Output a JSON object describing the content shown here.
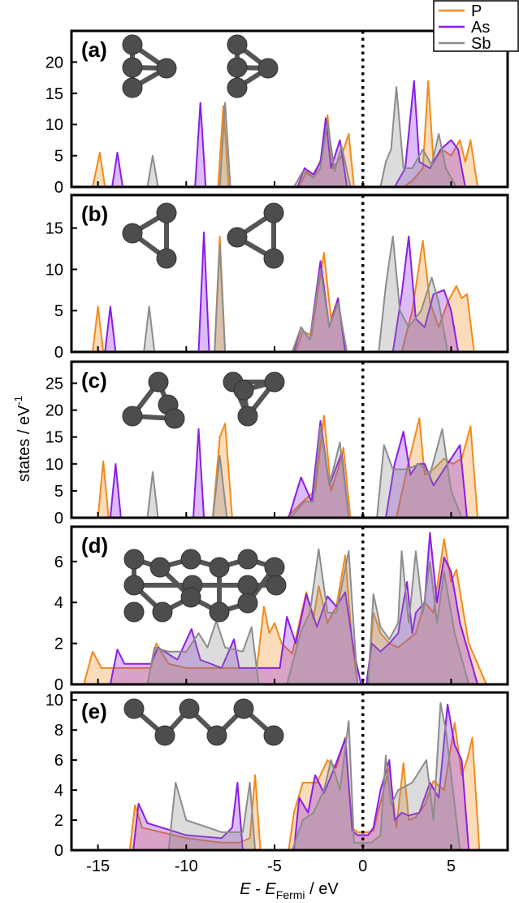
{
  "chart_data": [
    {
      "type": "area",
      "label": "(a)",
      "xlim": [
        -16.5,
        8.2
      ],
      "ylim": [
        0,
        25
      ],
      "yticks": [
        0,
        5,
        10,
        15,
        20
      ],
      "vline": 0,
      "series": [
        {
          "name": "P",
          "color": "#f28a1c",
          "x": [
            -15.3,
            -14.9,
            -14.6,
            -8.2,
            -7.9,
            -7.6,
            -3.6,
            -3.2,
            -2.8,
            -2.3,
            -2.0,
            -1.7,
            -1.2,
            -0.8,
            -0.5,
            2.3,
            2.8,
            3.4,
            3.7,
            4.0,
            4.5,
            5.0,
            5.5,
            5.8,
            6.1,
            6.5
          ],
          "values": [
            0,
            5.5,
            0,
            0,
            13,
            0,
            0,
            2.5,
            1.5,
            5,
            11.5,
            3,
            5,
            8.5,
            0,
            0,
            1,
            3,
            17,
            4,
            6,
            5,
            7.5,
            4,
            7.5,
            0
          ]
        },
        {
          "name": "As",
          "color": "#8a1ee6",
          "x": [
            -14.2,
            -13.9,
            -13.6,
            -9.5,
            -9.2,
            -8.9,
            -3.7,
            -3.3,
            -2.8,
            -2.4,
            -2.1,
            -1.8,
            -1.3,
            -0.9,
            1.8,
            2.4,
            2.9,
            3.2,
            3.8,
            4.4,
            5.0,
            5.4,
            5.8
          ],
          "values": [
            0,
            5.5,
            0,
            0,
            13.5,
            0,
            0,
            3,
            2,
            4,
            11,
            3,
            7.5,
            0,
            0,
            3,
            17,
            4,
            3,
            6,
            7.5,
            6,
            0
          ]
        },
        {
          "name": "Sb",
          "color": "#8c8c8c",
          "x": [
            -12.2,
            -11.9,
            -11.6,
            -8.1,
            -7.8,
            -7.5,
            -3.9,
            -3.4,
            -2.8,
            -2.4,
            -2.0,
            -1.6,
            -1.2,
            -0.7,
            1.0,
            1.3,
            1.6,
            1.9,
            2.3,
            2.8,
            3.4,
            3.9,
            4.3,
            4.7,
            5.3
          ],
          "values": [
            0,
            5,
            0,
            0,
            13.5,
            0,
            0,
            2.5,
            1.5,
            3,
            10.5,
            2.5,
            6.5,
            0,
            0,
            4,
            6,
            16,
            3,
            3,
            6,
            3.5,
            8.5,
            3,
            0
          ]
        }
      ]
    },
    {
      "type": "area",
      "label": "(b)",
      "xlim": [
        -16.5,
        8.2
      ],
      "ylim": [
        0,
        19
      ],
      "yticks": [
        0,
        5,
        10,
        15
      ],
      "vline": 0,
      "series": [
        {
          "color": "#f28a1c",
          "x": [
            -15.3,
            -15.0,
            -14.7,
            -8.4,
            -8.1,
            -7.8,
            -3.8,
            -3.4,
            -2.9,
            -2.5,
            -2.2,
            -1.8,
            -1.4,
            -1.0,
            2.2,
            2.8,
            3.4,
            3.8,
            4.3,
            4.8,
            5.3,
            5.6,
            5.9,
            6.3
          ],
          "values": [
            0,
            5.5,
            0,
            0,
            14,
            0,
            0,
            2.5,
            2,
            8,
            12,
            4,
            6.5,
            0,
            0,
            5,
            13.5,
            6,
            3,
            6,
            8,
            6.5,
            7,
            0
          ]
        },
        {
          "color": "#8a1ee6",
          "x": [
            -14.6,
            -14.3,
            -14.0,
            -9.3,
            -9.0,
            -8.7,
            -3.9,
            -3.5,
            -3.0,
            -2.4,
            -1.9,
            -1.4,
            -1.0,
            1.7,
            2.2,
            2.6,
            3.0,
            3.5,
            4.0,
            4.6,
            5.0,
            5.4
          ],
          "values": [
            0,
            5.5,
            0,
            0,
            14.5,
            0,
            0,
            3,
            1.5,
            11,
            3,
            6.5,
            0,
            0,
            7,
            14,
            4,
            3,
            7,
            7.5,
            5,
            0
          ]
        },
        {
          "color": "#8c8c8c",
          "x": [
            -12.4,
            -12.1,
            -11.8,
            -8.4,
            -8.1,
            -7.8,
            -4.0,
            -3.5,
            -3.0,
            -2.4,
            -1.9,
            -1.4,
            -0.9,
            0.9,
            1.3,
            1.7,
            2.1,
            2.6,
            3.3,
            3.9,
            4.3,
            4.8
          ],
          "values": [
            0,
            5.5,
            0,
            0,
            13,
            0,
            0,
            3,
            1.5,
            10,
            3,
            6,
            0,
            0,
            8,
            14,
            5,
            3,
            5,
            9,
            6,
            0
          ]
        }
      ]
    },
    {
      "type": "area",
      "label": "(c)",
      "xlim": [
        -16.5,
        8.2
      ],
      "ylim": [
        0,
        29
      ],
      "yticks": [
        0,
        5,
        10,
        15,
        20,
        25
      ],
      "vline": 0,
      "y_label": [
        "states / eV",
        "-1"
      ],
      "series": [
        {
          "color": "#f28a1c",
          "x": [
            -15.0,
            -14.7,
            -14.4,
            -8.5,
            -8.1,
            -7.8,
            -7.4,
            -4.3,
            -3.4,
            -2.7,
            -2.2,
            -1.8,
            -1.4,
            -1.1,
            -0.7,
            1.9,
            2.5,
            3.2,
            3.5,
            4.0,
            4.6,
            5.1,
            5.6,
            6.1,
            6.5
          ],
          "values": [
            0,
            10.5,
            0,
            0,
            15,
            17.5,
            0,
            0,
            3,
            5,
            19,
            5,
            9,
            13,
            0,
            0,
            9,
            18.5,
            8,
            9,
            11,
            10,
            11,
            17,
            0
          ]
        },
        {
          "color": "#8a1ee6",
          "x": [
            -14.3,
            -14.0,
            -13.7,
            -9.6,
            -9.3,
            -9.0,
            -4.2,
            -3.5,
            -2.9,
            -2.4,
            -1.9,
            -1.2,
            -0.8,
            1.3,
            1.8,
            2.3,
            2.7,
            3.1,
            3.5,
            4.0,
            4.6,
            5.0,
            5.5,
            5.9
          ],
          "values": [
            0,
            10,
            0,
            0,
            16.5,
            0,
            0,
            7.5,
            3,
            18,
            6,
            12,
            0,
            0,
            10,
            16,
            8,
            10,
            10,
            6,
            9,
            11,
            13.5,
            0
          ]
        },
        {
          "color": "#8c8c8c",
          "x": [
            -12.2,
            -11.9,
            -11.6,
            -8.5,
            -8.1,
            -7.7,
            -4.1,
            -3.3,
            -2.8,
            -2.4,
            -1.9,
            -1.3,
            -0.8,
            0.8,
            1.2,
            1.7,
            2.5,
            3.2,
            3.8,
            4.5,
            5.0,
            5.6
          ],
          "values": [
            0,
            8.5,
            0,
            0,
            11.5,
            0,
            0,
            3,
            3,
            17,
            6,
            14,
            0,
            0,
            13.5,
            9,
            9,
            10,
            8,
            16.5,
            5,
            0
          ]
        }
      ]
    },
    {
      "type": "area",
      "label": "(d)",
      "xlim": [
        -16.5,
        8.2
      ],
      "ylim": [
        0,
        7.7
      ],
      "yticks": [
        0,
        2,
        4,
        6
      ],
      "vline": 0,
      "series": [
        {
          "color": "#f28a1c",
          "x": [
            -15.8,
            -15.3,
            -14.8,
            -12,
            -11.7,
            -11,
            -10,
            -7,
            -6,
            -5.6,
            -5.3,
            -5.0,
            -4.6,
            -4.0,
            -3.2,
            -2.8,
            -2.5,
            -2.0,
            -1.5,
            -1.0,
            -0.6,
            -0.3,
            0.3,
            0.6,
            1.0,
            1.5,
            2.0,
            3.0,
            3.5,
            4.0,
            4.6,
            5.0,
            5.3,
            5.7,
            6.0,
            6.5,
            7.0
          ],
          "values": [
            0,
            1.6,
            0.8,
            0.8,
            2.0,
            1.0,
            0.8,
            0.8,
            0.8,
            3.8,
            2.5,
            3.0,
            2.0,
            1.5,
            4.5,
            3.2,
            4.8,
            3.0,
            3.8,
            6.3,
            2,
            0,
            0,
            3.5,
            2.5,
            2.0,
            1.8,
            2.5,
            4.0,
            3.5,
            7.1,
            5.0,
            5.6,
            3.5,
            2.0,
            1.0,
            0
          ]
        },
        {
          "color": "#8a1ee6",
          "x": [
            -14.3,
            -13.9,
            -13.5,
            -12.0,
            -11.6,
            -10.5,
            -9.7,
            -9.2,
            -8.0,
            -7.3,
            -7.0,
            -4.7,
            -4.3,
            -3.8,
            -3.2,
            -2.6,
            -2.0,
            -1.5,
            -1.0,
            -0.5,
            -0.1,
            0.2,
            0.5,
            1.0,
            1.5,
            2.0,
            2.5,
            2.8,
            3.0,
            3.5,
            3.8,
            4.2,
            4.6,
            5.0,
            5.5,
            6.0,
            6.5
          ],
          "values": [
            0,
            1.7,
            1.0,
            1.0,
            1.8,
            1.2,
            2.7,
            1.2,
            0.8,
            2.2,
            0.8,
            0.8,
            3.3,
            2.0,
            4.4,
            2.8,
            4.3,
            3.8,
            4.5,
            1.6,
            0,
            0,
            2,
            1.6,
            2.0,
            2.5,
            5.0,
            2.5,
            3.5,
            4.0,
            7.4,
            4.0,
            6.2,
            5.5,
            3.0,
            1.5,
            0
          ]
        },
        {
          "color": "#8c8c8c",
          "x": [
            -12.2,
            -11.8,
            -11.0,
            -10.0,
            -9.3,
            -8.8,
            -8.3,
            -7.8,
            -6.8,
            -6.3,
            -5.9,
            -4.3,
            -3.5,
            -3.0,
            -2.5,
            -2.0,
            -1.5,
            -0.8,
            -0.3,
            0.3,
            0.6,
            1.0,
            1.5,
            2.0,
            2.2,
            2.6,
            3.0,
            3.4,
            3.8,
            4.2,
            4.6,
            5.2,
            6.0
          ],
          "values": [
            0,
            1.8,
            1.6,
            1.6,
            2.5,
            1.8,
            3.1,
            1.8,
            1.6,
            2.8,
            0,
            0,
            2.6,
            3.5,
            6.6,
            3.5,
            3.5,
            6.5,
            0,
            0,
            4.4,
            2.8,
            2.2,
            3.0,
            6.5,
            3.0,
            6.5,
            3.5,
            6.0,
            3.0,
            5.5,
            2.5,
            0
          ]
        }
      ]
    },
    {
      "type": "area",
      "label": "(e)",
      "xlim": [
        -16.5,
        8.2
      ],
      "ylim": [
        0,
        10.5
      ],
      "yticks": [
        0,
        2,
        4,
        6,
        8,
        10
      ],
      "vline": 0,
      "xticks": [
        -15,
        -10,
        -5,
        0,
        5
      ],
      "x_label": [
        "E",
        " - ",
        "E",
        "Fermi",
        " / eV"
      ],
      "series": [
        {
          "color": "#f28a1c",
          "x": [
            -13.2,
            -12.9,
            -12.5,
            -10.0,
            -8.0,
            -7.0,
            -6.4,
            -6.1,
            -5.8,
            -4.2,
            -3.9,
            -3.4,
            -2.6,
            -2.0,
            -1.5,
            -1.0,
            -0.6,
            -0.3,
            0.3,
            0.6,
            1.5,
            1.9,
            2.3,
            2.6,
            3.0,
            3.5,
            4.0,
            4.6,
            5.2,
            5.6,
            5.9,
            6.2,
            6.6
          ],
          "values": [
            0,
            3.0,
            1.5,
            0.8,
            0.5,
            0.5,
            0.8,
            5.0,
            0,
            0,
            2.5,
            4.5,
            4.5,
            6.0,
            5.5,
            7.5,
            1.5,
            1.2,
            1.2,
            1.3,
            5.5,
            1.5,
            5.8,
            2.0,
            2.2,
            3.0,
            4.6,
            4.0,
            8.5,
            5.0,
            6.0,
            7.5,
            0
          ]
        },
        {
          "color": "#8a1ee6",
          "x": [
            -13.0,
            -12.7,
            -12.2,
            -10.0,
            -8.0,
            -7.4,
            -7.1,
            -6.8,
            -3.9,
            -3.6,
            -3.1,
            -2.7,
            -2.2,
            -1.6,
            -1.0,
            -0.6,
            -0.3,
            0.3,
            0.6,
            1.0,
            1.5,
            1.8,
            2.2,
            2.6,
            3.2,
            3.8,
            4.3,
            4.8,
            5.2,
            5.6,
            6.0
          ],
          "values": [
            0,
            3.1,
            1.8,
            1.0,
            0.8,
            1.5,
            4.5,
            0,
            0,
            3.5,
            2.5,
            5.0,
            3.8,
            5.5,
            7.4,
            1.3,
            1.0,
            1.0,
            1.5,
            4.0,
            6.0,
            2.0,
            2.5,
            2.3,
            2.5,
            4.5,
            3.5,
            9.7,
            7.0,
            6.0,
            0
          ]
        },
        {
          "color": "#8c8c8c",
          "x": [
            -11.0,
            -10.6,
            -10.0,
            -8.0,
            -6.8,
            -6.4,
            -6.1,
            -4.0,
            -3.4,
            -2.8,
            -2.2,
            -1.8,
            -1.3,
            -0.8,
            -0.5,
            0.5,
            1.0,
            1.3,
            1.6,
            2.0,
            2.8,
            3.6,
            4.0,
            4.4,
            4.7,
            5.0,
            5.5
          ],
          "values": [
            0,
            4.5,
            2.0,
            1.2,
            1.2,
            4.5,
            0,
            0,
            2.0,
            2.5,
            4.0,
            6.0,
            4.0,
            8.6,
            0.5,
            0.5,
            1.0,
            6.3,
            3.0,
            4.0,
            4.5,
            6.0,
            2.0,
            9.8,
            8.0,
            5.0,
            0
          ]
        }
      ]
    }
  ]
}
